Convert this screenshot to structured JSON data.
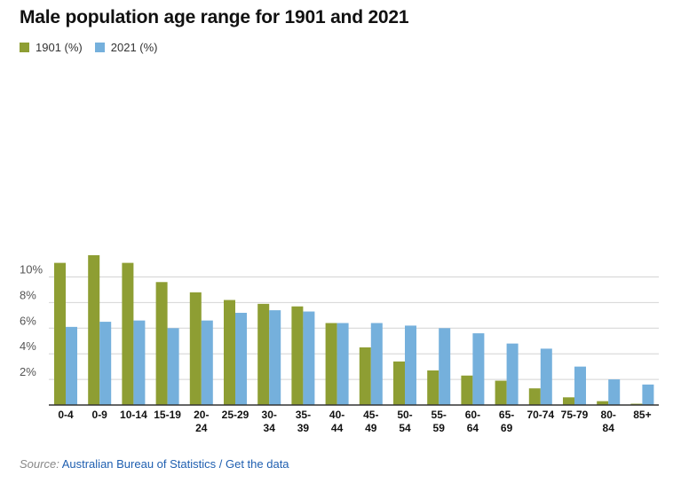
{
  "title": "Male population age range for 1901 and 2021",
  "source": {
    "lead": "Source:",
    "text": "Australian Bureau of Statistics",
    "separator": " / ",
    "link": "Get the data"
  },
  "colors": {
    "s1901": "#8e9e33",
    "s2021": "#75b0dc",
    "grid": "#d4d4d4",
    "axis": "#333333"
  },
  "chart_data": {
    "type": "bar",
    "title": "Male population age range for 1901 and 2021",
    "categories": [
      [
        "0-4"
      ],
      [
        "0-9"
      ],
      [
        "10-14"
      ],
      [
        "15-19"
      ],
      [
        "20-",
        "24"
      ],
      [
        "25-29"
      ],
      [
        "30-",
        "34"
      ],
      [
        "35-",
        "39"
      ],
      [
        "40-",
        "44"
      ],
      [
        "45-",
        "49"
      ],
      [
        "50-",
        "54"
      ],
      [
        "55-",
        "59"
      ],
      [
        "60-",
        "64"
      ],
      [
        "65-",
        "69"
      ],
      [
        "70-74"
      ],
      [
        "75-79"
      ],
      [
        "80-",
        "84"
      ],
      [
        "85+"
      ]
    ],
    "series": [
      {
        "name": "1901 (%)",
        "color": "#8e9e33",
        "values": [
          11.1,
          11.7,
          11.1,
          9.6,
          8.8,
          8.2,
          7.9,
          7.7,
          6.4,
          4.5,
          3.4,
          2.7,
          2.3,
          1.9,
          1.3,
          0.6,
          0.3,
          0.1
        ]
      },
      {
        "name": "2021 (%)",
        "color": "#75b0dc",
        "values": [
          6.1,
          6.5,
          6.6,
          6.0,
          6.6,
          7.2,
          7.4,
          7.3,
          6.4,
          6.4,
          6.2,
          6.0,
          5.6,
          4.8,
          4.4,
          3.0,
          2.0,
          1.6
        ]
      }
    ],
    "yticks": [
      2,
      4,
      6,
      8,
      10
    ],
    "ytick_labels": [
      "2%",
      "4%",
      "6%",
      "8%",
      "10%"
    ],
    "ylim": [
      0,
      12
    ],
    "grid": true,
    "legend_position": "top-left"
  }
}
